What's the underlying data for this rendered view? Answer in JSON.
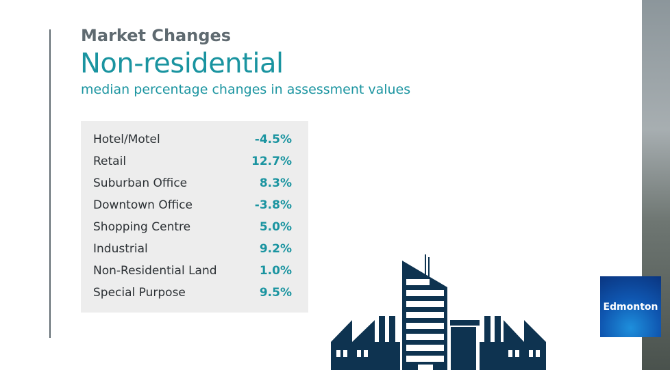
{
  "header": {
    "kicker": "Market Changes",
    "title": "Non-residential",
    "subtitle": "median percentage changes in assessment values"
  },
  "table": {
    "rows": [
      {
        "label": "Hotel/Motel",
        "value": "-4.5%"
      },
      {
        "label": "Retail",
        "value": "12.7%"
      },
      {
        "label": "Suburban Office",
        "value": "8.3%"
      },
      {
        "label": "Downtown Office",
        "value": "-3.8%"
      },
      {
        "label": "Shopping Centre",
        "value": "5.0%"
      },
      {
        "label": "Industrial",
        "value": "9.2%"
      },
      {
        "label": "Non-Residential Land",
        "value": "1.0%"
      },
      {
        "label": "Special Purpose",
        "value": "9.5%"
      }
    ]
  },
  "logo": {
    "text": "Edmonton"
  },
  "colors": {
    "accent": "#1a94a0",
    "heading": "#5f6a70",
    "building": "#0e3350",
    "table_bg": "#ededed"
  },
  "icons": [
    "city-buildings-icon"
  ]
}
